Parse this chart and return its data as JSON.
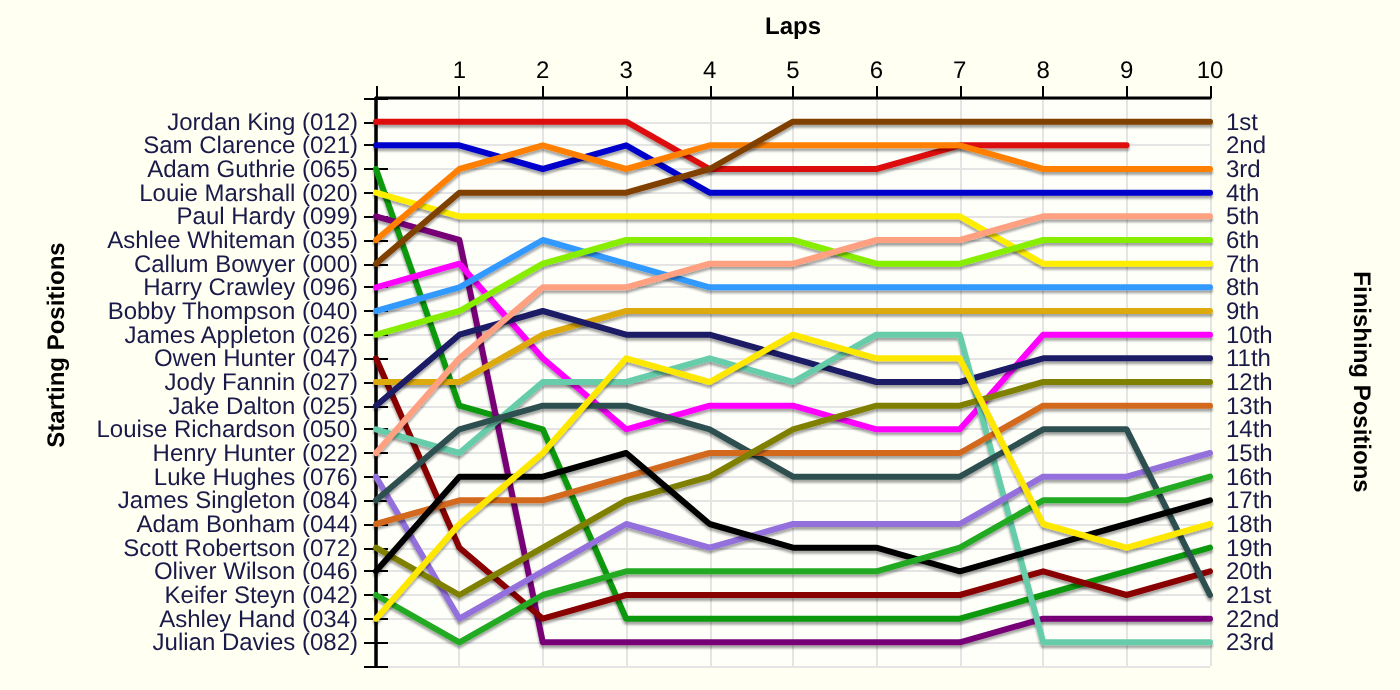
{
  "chart_data": {
    "type": "line",
    "xlabel": "Laps",
    "ylabel": "Finishing Positions",
    "x": [
      0,
      1,
      2,
      3,
      4,
      5,
      6,
      7,
      8,
      9,
      10
    ],
    "xlim": [
      0,
      10
    ],
    "xticks": [
      {
        "value": 0,
        "label": null
      },
      1,
      2,
      3,
      4,
      5,
      6,
      7,
      8,
      9,
      10
    ],
    "ylim": [
      24,
      0
    ],
    "yticks": [
      {
        "value": 0,
        "label": null
      },
      {
        "value": 1,
        "label": "1st"
      },
      {
        "value": 2,
        "label": "2nd"
      },
      {
        "value": 3,
        "label": "3rd"
      },
      {
        "value": 4,
        "label": "4th"
      },
      {
        "value": 5,
        "label": "5th"
      },
      {
        "value": 6,
        "label": "6th"
      },
      {
        "value": 7,
        "label": "7th"
      },
      {
        "value": 8,
        "label": "8th"
      },
      {
        "value": 9,
        "label": "9th"
      },
      {
        "value": 10,
        "label": "10th"
      },
      {
        "value": 11,
        "label": "11th"
      },
      {
        "value": 12,
        "label": "12th"
      },
      {
        "value": 13,
        "label": "13th"
      },
      {
        "value": 14,
        "label": "14th"
      },
      {
        "value": 15,
        "label": "15th"
      },
      {
        "value": 16,
        "label": "16th"
      },
      {
        "value": 17,
        "label": "17th"
      },
      {
        "value": 18,
        "label": "18th"
      },
      {
        "value": 19,
        "label": "19th"
      },
      {
        "value": 20,
        "label": "20th"
      },
      {
        "value": 21,
        "label": "21st"
      },
      {
        "value": 22,
        "label": "22nd"
      },
      {
        "value": 23,
        "label": "23rd"
      },
      {
        "value": 24,
        "label": null
      }
    ],
    "annotations": [
      "Starting Positions",
      "Jordan King (012)",
      "Sam Clarence (021)",
      "Adam Guthrie (065)",
      "Louie Marshall (020)",
      "Paul Hardy (099)",
      "Ashlee Whiteman (035)",
      "Callum Bowyer (000)",
      "Harry Crawley (096)",
      "Bobby Thompson (040)",
      "James Appleton (026)",
      "Owen Hunter (047)",
      "Jody Fannin (027)",
      "Jake Dalton (025)",
      "Louise Richardson (050)",
      "Henry Hunter (022)",
      "Luke Hughes (076)",
      "James Singleton (084)",
      "Adam Bonham (044)",
      "Scott Robertson (072)",
      "Oliver Wilson (046)",
      "Keifer Steyn (042)",
      "Ashley Hand (034)",
      "Julian Davies (082)"
    ],
    "grid": true,
    "marker": "none",
    "line_style": "solid",
    "series": [
      {
        "color": "#dd1111",
        "values": [
          1,
          1,
          1,
          1,
          3,
          3,
          3,
          2,
          2,
          2,
          null
        ]
      },
      {
        "color": "#0000cc",
        "values": [
          2,
          2,
          3,
          2,
          4,
          4,
          4,
          4,
          4,
          4,
          4
        ]
      },
      {
        "color": "#119911",
        "values": [
          3,
          13,
          14,
          22,
          22,
          22,
          22,
          22,
          21,
          20,
          19
        ]
      },
      {
        "color": "#ffee00",
        "values": [
          4,
          5,
          5,
          5,
          5,
          5,
          5,
          5,
          7,
          7,
          7
        ]
      },
      {
        "color": "#770077",
        "values": [
          5,
          6,
          23,
          23,
          23,
          23,
          23,
          23,
          22,
          22,
          22
        ]
      },
      {
        "color": "#ff8000",
        "values": [
          6,
          3,
          2,
          3,
          2,
          2,
          2,
          2,
          3,
          3,
          3
        ]
      },
      {
        "color": "#804000",
        "values": [
          7,
          4,
          4,
          4,
          3,
          1,
          1,
          1,
          1,
          1,
          1
        ]
      },
      {
        "color": "#ff00ff",
        "values": [
          8,
          7,
          11,
          14,
          13,
          13,
          14,
          14,
          10,
          10,
          10
        ]
      },
      {
        "color": "#3399ff",
        "values": [
          9,
          8,
          6,
          7,
          8,
          8,
          8,
          8,
          8,
          8,
          8
        ]
      },
      {
        "color": "#88ee00",
        "values": [
          10,
          9,
          7,
          6,
          6,
          6,
          7,
          7,
          6,
          6,
          6
        ]
      },
      {
        "color": "#880000",
        "values": [
          11,
          19,
          22,
          21,
          21,
          21,
          21,
          21,
          20,
          21,
          20
        ]
      },
      {
        "color": "#ddaa11",
        "values": [
          12,
          12,
          10,
          9,
          9,
          9,
          9,
          9,
          9,
          9,
          9
        ]
      },
      {
        "color": "#1a1a66",
        "values": [
          13,
          10,
          9,
          10,
          10,
          11,
          12,
          12,
          11,
          11,
          11
        ]
      },
      {
        "color": "#66ccaa",
        "values": [
          14,
          15,
          12,
          12,
          11,
          12,
          10,
          10,
          23,
          23,
          23
        ]
      },
      {
        "color": "#ffa080",
        "values": [
          15,
          11,
          8,
          8,
          7,
          7,
          6,
          6,
          5,
          5,
          5
        ]
      },
      {
        "color": "#9370db",
        "values": [
          16,
          22,
          20,
          18,
          19,
          18,
          18,
          18,
          16,
          16,
          15
        ]
      },
      {
        "color": "#2f4f4f",
        "values": [
          17,
          14,
          13,
          13,
          14,
          16,
          16,
          16,
          14,
          14,
          21
        ]
      },
      {
        "color": "#d2691e",
        "values": [
          18,
          17,
          17,
          16,
          15,
          15,
          15,
          15,
          13,
          13,
          13
        ]
      },
      {
        "color": "#808000",
        "values": [
          19,
          21,
          19,
          17,
          16,
          14,
          13,
          13,
          12,
          12,
          12
        ]
      },
      {
        "color": "#000000",
        "values": [
          20,
          16,
          16,
          15,
          18,
          19,
          19,
          20,
          19,
          18,
          17
        ]
      },
      {
        "color": "#22aa22",
        "values": [
          21,
          23,
          21,
          20,
          20,
          20,
          20,
          19,
          17,
          17,
          16
        ]
      },
      {
        "color": "#ffe800",
        "values": [
          22,
          18,
          15,
          11,
          12,
          10,
          11,
          11,
          18,
          19,
          18
        ]
      }
    ]
  }
}
